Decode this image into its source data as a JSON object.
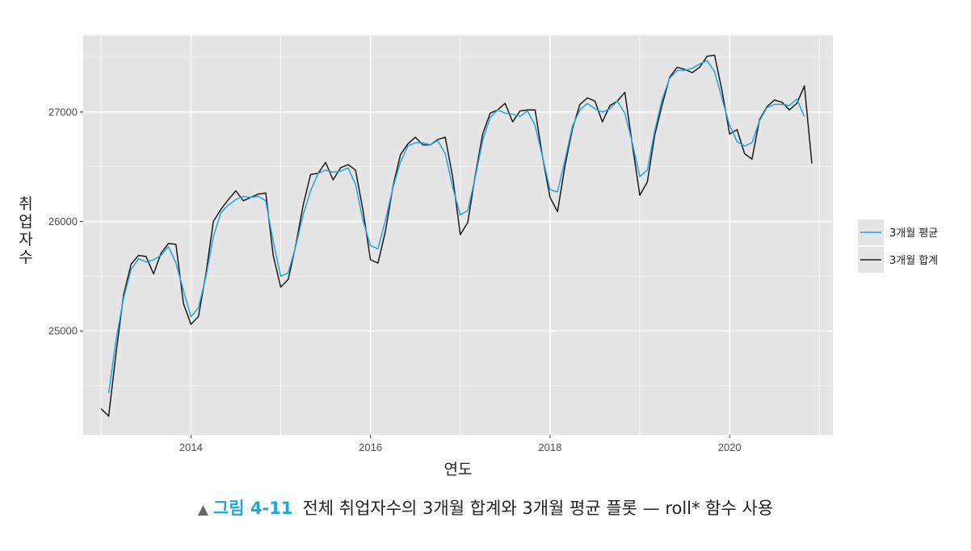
{
  "chart_data": {
    "type": "line",
    "title": "",
    "xlabel": "연도",
    "ylabel": "취업자수",
    "xlim": [
      2012.8,
      2021.15
    ],
    "ylim": [
      24050,
      27700
    ],
    "x_ticks": [
      2014,
      2016,
      2018,
      2020
    ],
    "x_tick_labels": [
      "2014",
      "2016",
      "2018",
      "2020"
    ],
    "y_ticks": [
      25000,
      26000,
      27000
    ],
    "y_tick_labels": [
      "25000",
      "26000",
      "27000"
    ],
    "grid": true,
    "legend_position": "right",
    "series": [
      {
        "name": "3개월 평균",
        "color": "#1ea6dc",
        "x_start": 2013.083,
        "x_step": 0.08333,
        "values": [
          24430,
          24920,
          25300,
          25560,
          25660,
          25630,
          25650,
          25690,
          25770,
          25620,
          25370,
          25130,
          25210,
          25490,
          25860,
          26080,
          26150,
          26200,
          26230,
          26220,
          26230,
          26190,
          25820,
          25500,
          25530,
          25770,
          26060,
          26280,
          26440,
          26470,
          26450,
          26460,
          26490,
          26340,
          26010,
          25780,
          25750,
          26010,
          26310,
          26540,
          26690,
          26720,
          26720,
          26700,
          26740,
          26620,
          26310,
          26060,
          26100,
          26400,
          26740,
          26950,
          27020,
          26990,
          26980,
          26960,
          27010,
          26880,
          26590,
          26290,
          26270,
          26560,
          26870,
          27020,
          27080,
          27030,
          27000,
          27030,
          27100,
          26990,
          26720,
          26410,
          26470,
          26830,
          27120,
          27310,
          27380,
          27380,
          27400,
          27440,
          27470,
          27370,
          27120,
          26880,
          26730,
          26690,
          26720,
          26920,
          27040,
          27070,
          27070,
          27060,
          27120,
          26960
        ]
      },
      {
        "name": "3개월 합계",
        "color": "#1a1a1a",
        "x_start": 2013.0,
        "x_step": 0.08333,
        "values": [
          24290,
          24220,
          24800,
          25330,
          25610,
          25690,
          25680,
          25520,
          25710,
          25800,
          25790,
          25250,
          25060,
          25130,
          25520,
          26000,
          26110,
          26200,
          26280,
          26190,
          26220,
          26250,
          26260,
          25690,
          25400,
          25470,
          25780,
          26150,
          26430,
          26440,
          26540,
          26380,
          26490,
          26520,
          26470,
          26100,
          25650,
          25620,
          25910,
          26320,
          26610,
          26710,
          26770,
          26700,
          26700,
          26750,
          26770,
          26400,
          25880,
          25990,
          26420,
          26800,
          26990,
          27020,
          27080,
          26910,
          27010,
          27020,
          27020,
          26590,
          26220,
          26090,
          26510,
          26850,
          27070,
          27130,
          27100,
          26910,
          27060,
          27100,
          27180,
          26700,
          26240,
          26360,
          26790,
          27070,
          27320,
          27410,
          27390,
          27360,
          27410,
          27510,
          27520,
          27190,
          26800,
          26840,
          26620,
          26570,
          26930,
          27050,
          27110,
          27090,
          27020,
          27080,
          27240,
          26530
        ]
      }
    ]
  },
  "caption": {
    "marker": "▲",
    "figure_label": "그림 4-11",
    "text": "전체 취업자수의 3개월 합계와 3개월 평균 플롯 — roll* 함수 사용"
  }
}
